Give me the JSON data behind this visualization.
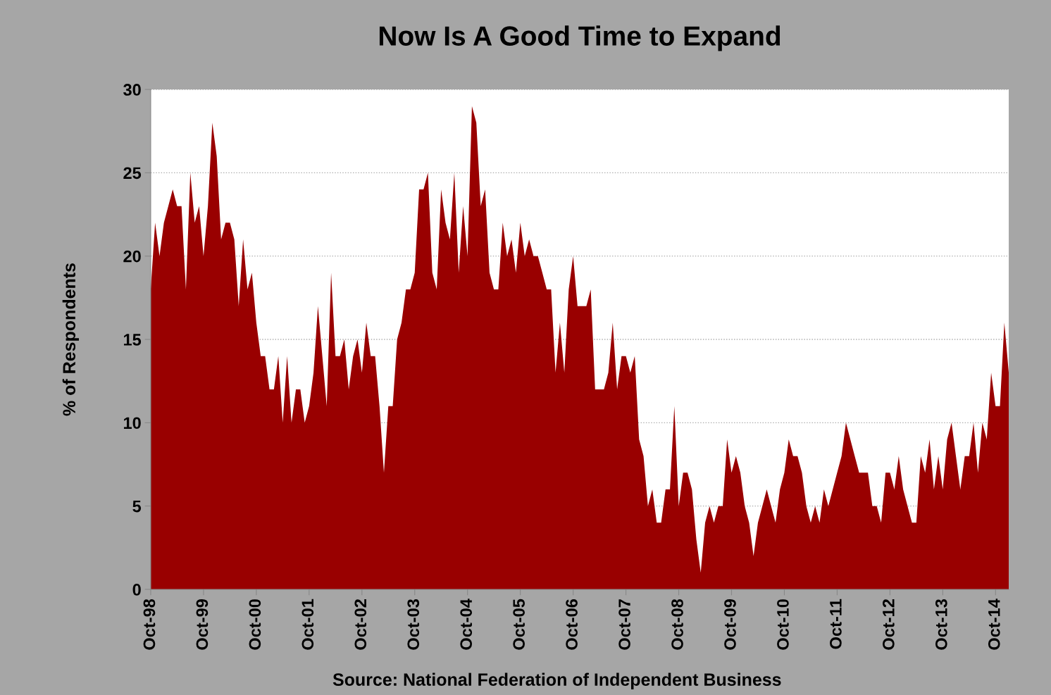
{
  "chart_data": {
    "type": "area",
    "title": "Now Is A Good Time to Expand",
    "ylabel": "% of Respondents",
    "categories": [
      "Oct-98",
      null,
      null,
      null,
      null,
      null,
      null,
      null,
      null,
      null,
      null,
      null,
      "Oct-99",
      null,
      null,
      null,
      null,
      null,
      null,
      null,
      null,
      null,
      null,
      null,
      "Oct-00",
      null,
      null,
      null,
      null,
      null,
      null,
      null,
      null,
      null,
      null,
      null,
      "Oct-01",
      null,
      null,
      null,
      null,
      null,
      null,
      null,
      null,
      null,
      null,
      null,
      "Oct-02",
      null,
      null,
      null,
      null,
      null,
      null,
      null,
      null,
      null,
      null,
      null,
      "Oct-03",
      null,
      null,
      null,
      null,
      null,
      null,
      null,
      null,
      null,
      null,
      null,
      "Oct-04",
      null,
      null,
      null,
      null,
      null,
      null,
      null,
      null,
      null,
      null,
      null,
      "Oct-05",
      null,
      null,
      null,
      null,
      null,
      null,
      null,
      null,
      null,
      null,
      null,
      "Oct-06",
      null,
      null,
      null,
      null,
      null,
      null,
      null,
      null,
      null,
      null,
      null,
      "Oct-07",
      null,
      null,
      null,
      null,
      null,
      null,
      null,
      null,
      null,
      null,
      null,
      "Oct-08",
      null,
      null,
      null,
      null,
      null,
      null,
      null,
      null,
      null,
      null,
      null,
      "Oct-09",
      null,
      null,
      null,
      null,
      null,
      null,
      null,
      null,
      null,
      null,
      null,
      "Oct-10",
      null,
      null,
      null,
      null,
      null,
      null,
      null,
      null,
      null,
      null,
      null,
      "Oct-11",
      null,
      null,
      null,
      null,
      null,
      null,
      null,
      null,
      null,
      null,
      null,
      "Oct-12",
      null,
      null,
      null,
      null,
      null,
      null,
      null,
      null,
      null,
      null,
      null,
      "Oct-13",
      null,
      null,
      null,
      null,
      null,
      null,
      null,
      null,
      null,
      null,
      null,
      "Oct-14",
      null,
      null,
      null
    ],
    "series": [
      {
        "color": "#990000",
        "values": [
          18,
          22,
          20,
          22,
          23,
          24,
          23,
          23,
          18,
          25,
          22,
          23,
          20,
          23,
          28,
          26,
          21,
          22,
          22,
          21,
          17,
          21,
          18,
          19,
          16,
          14,
          14,
          12,
          12,
          14,
          10,
          14,
          10,
          12,
          12,
          10,
          11,
          13,
          17,
          14,
          11,
          19,
          14,
          14,
          15,
          12,
          14,
          15,
          13,
          16,
          14,
          14,
          11,
          7,
          11,
          11,
          15,
          16,
          18,
          18,
          19,
          24,
          24,
          25,
          19,
          18,
          24,
          22,
          21,
          25,
          19,
          23,
          20,
          29,
          28,
          23,
          24,
          19,
          18,
          18,
          22,
          20,
          21,
          19,
          22,
          20,
          21,
          20,
          20,
          19,
          18,
          18,
          13,
          16,
          13,
          18,
          20,
          17,
          17,
          17,
          18,
          12,
          12,
          12,
          13,
          16,
          12,
          14,
          14,
          13,
          14,
          9,
          8,
          5,
          6,
          4,
          4,
          6,
          6,
          11,
          5,
          7,
          7,
          6,
          3,
          1,
          4,
          5,
          4,
          5,
          5,
          9,
          7,
          8,
          7,
          5,
          4,
          2,
          4,
          5,
          6,
          5,
          4,
          6,
          7,
          9,
          8,
          8,
          7,
          5,
          4,
          5,
          4,
          6,
          5,
          6,
          7,
          8,
          10,
          9,
          8,
          7,
          7,
          7,
          5,
          5,
          4,
          7,
          7,
          6,
          8,
          6,
          5,
          4,
          4,
          8,
          7,
          9,
          6,
          8,
          6,
          9,
          10,
          8,
          6,
          8,
          8,
          10,
          7,
          10,
          9,
          13,
          11,
          11,
          16,
          13
        ]
      }
    ],
    "ylim": [
      0,
      30
    ],
    "yticks": [
      0,
      5,
      10,
      15,
      20,
      25,
      30
    ],
    "grid": "y",
    "annotations": [
      "Source: National Federation of Independent Business"
    ]
  }
}
